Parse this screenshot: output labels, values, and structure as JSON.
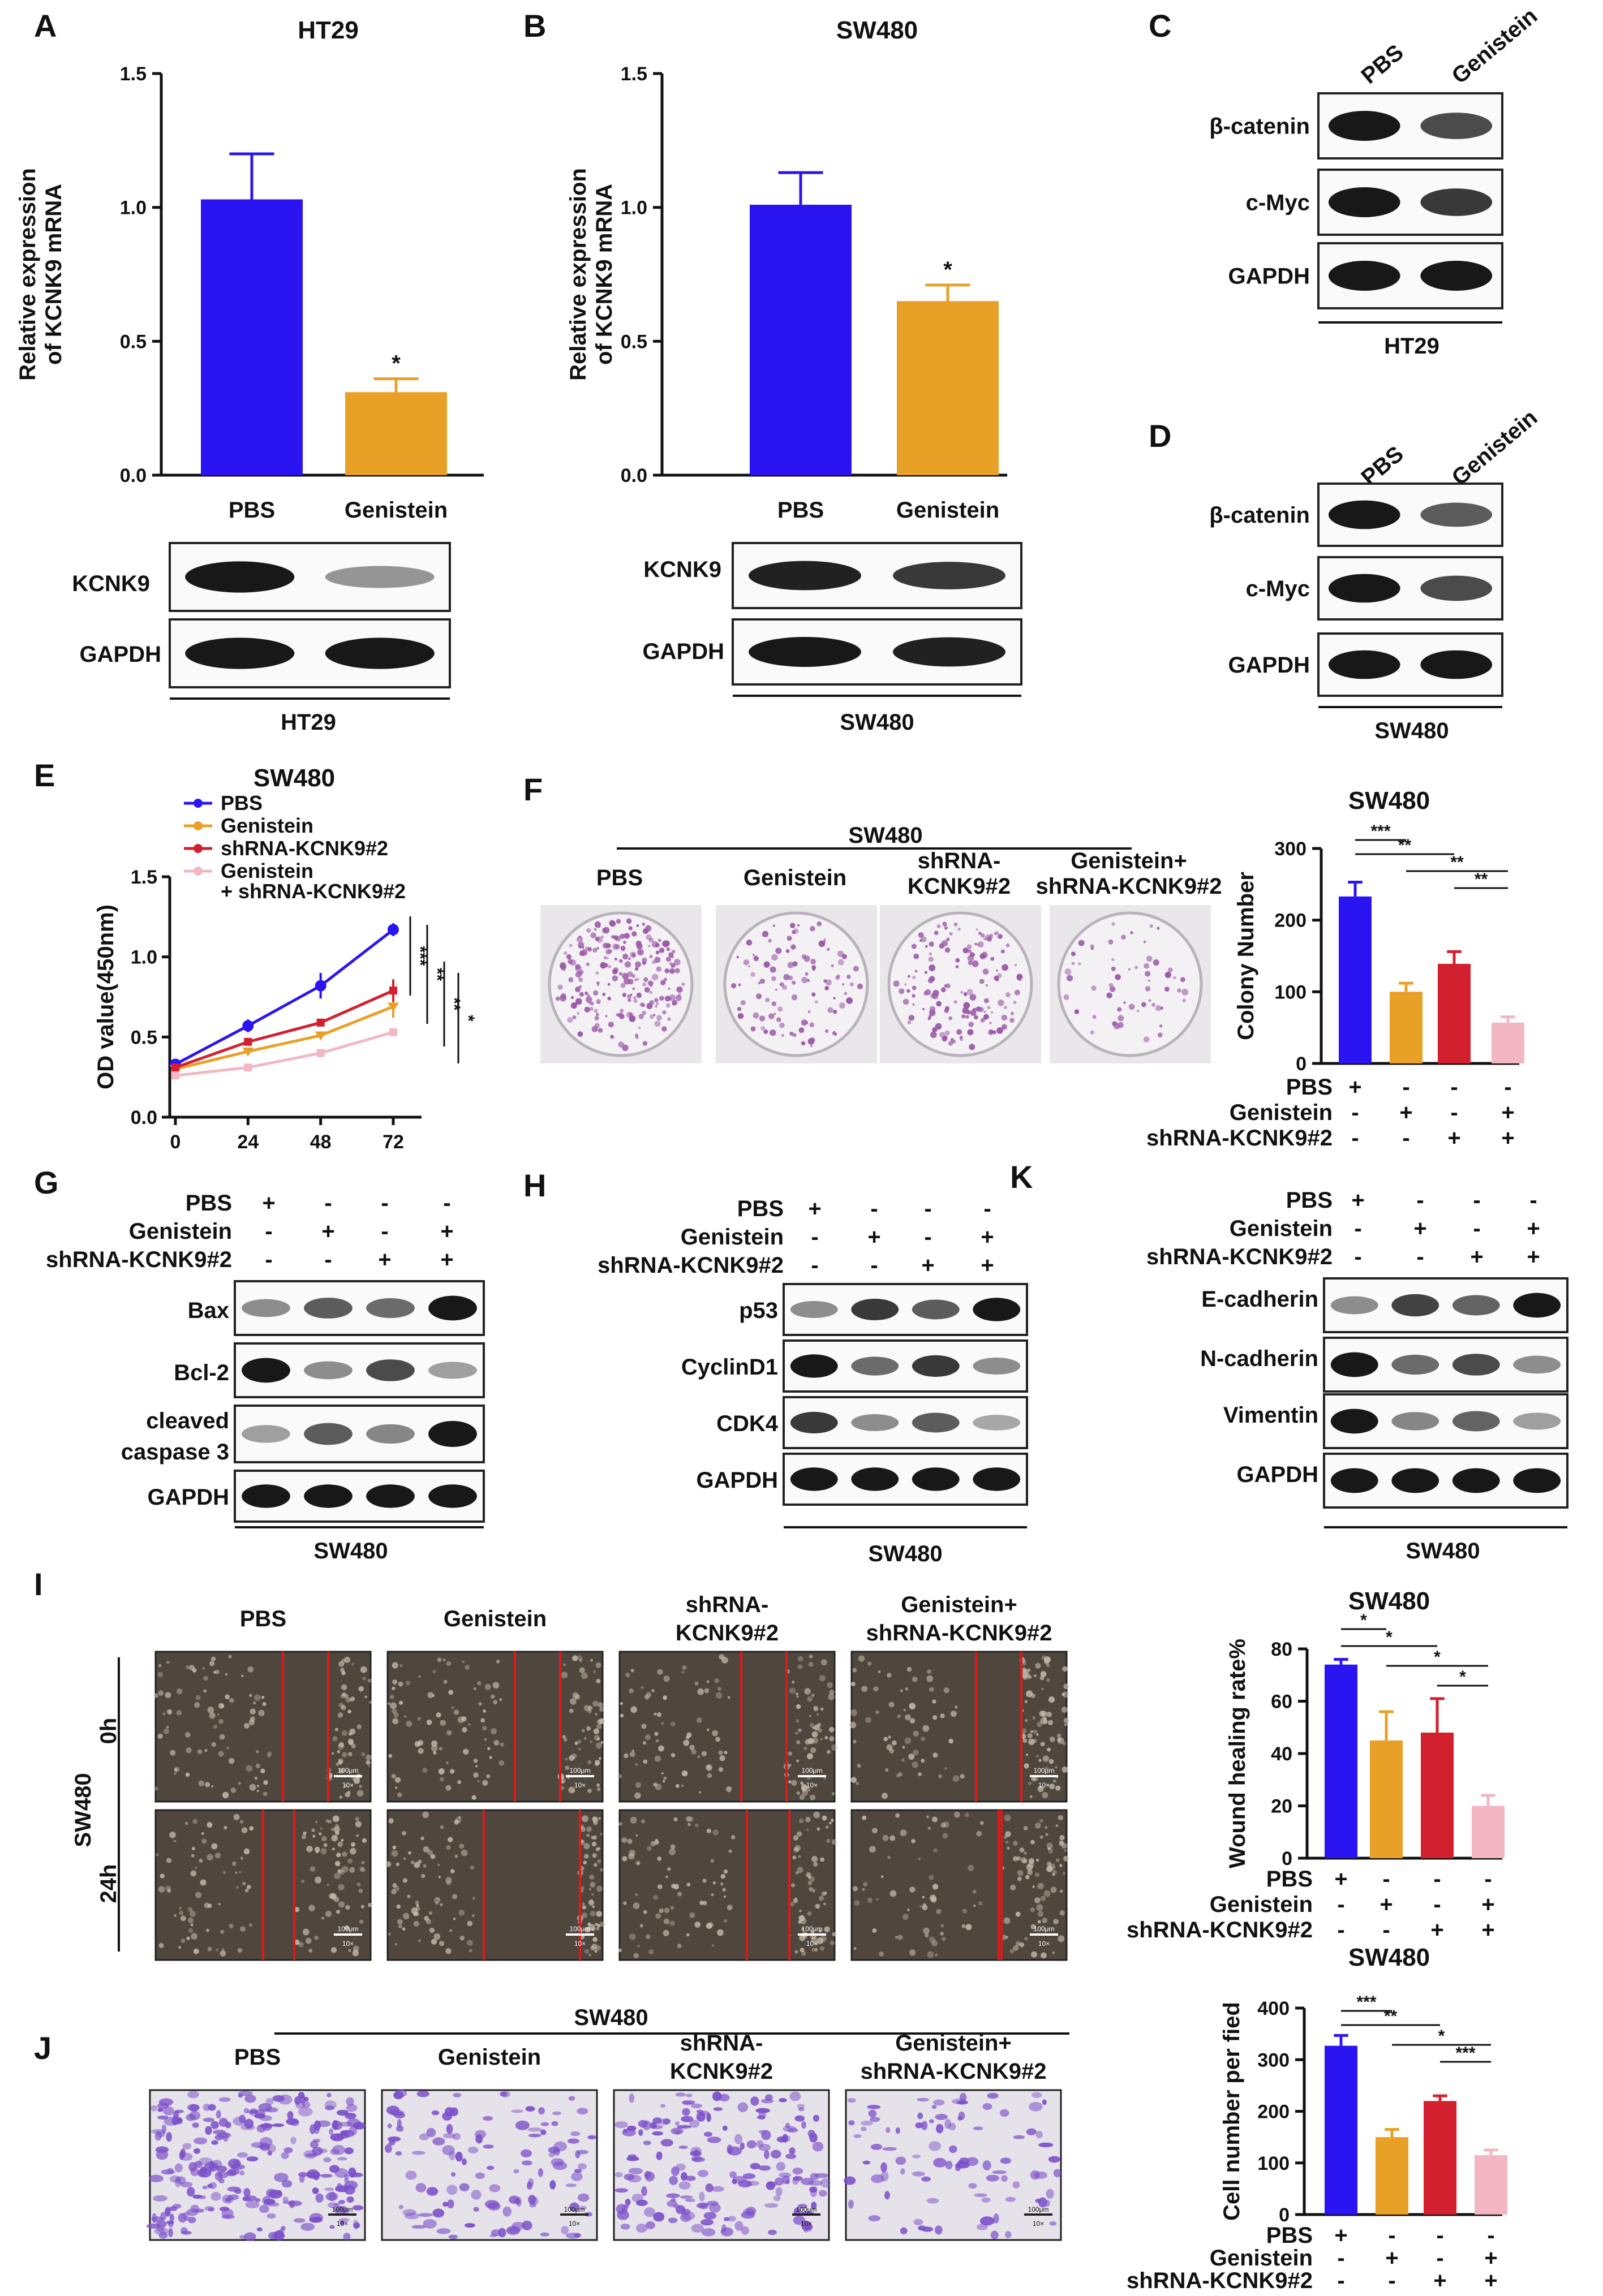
{
  "panels": {
    "A": {
      "label": "A",
      "title": "HT29"
    },
    "B": {
      "label": "B",
      "title": "SW480"
    },
    "C": {
      "label": "C",
      "cell": "HT29"
    },
    "D": {
      "label": "D",
      "cell": "SW480"
    },
    "E": {
      "label": "E",
      "title": "SW480"
    },
    "F": {
      "label": "F",
      "header": "SW480",
      "title": "SW480"
    },
    "G": {
      "label": "G",
      "cell": "SW480"
    },
    "H": {
      "label": "H",
      "cell": "SW480"
    },
    "K": {
      "label": "K",
      "cell": "SW480"
    },
    "I": {
      "label": "I",
      "title": "SW480",
      "side": "SW480",
      "row0": "0h",
      "row24": "24h",
      "scale": "100μm",
      "mag": "10×"
    },
    "J": {
      "label": "J",
      "header": "SW480",
      "title": "SW480",
      "scale": "100μm",
      "mag": "10×"
    }
  },
  "blots": {
    "A": {
      "rows": [
        "KCNK9",
        "GAPDH"
      ],
      "cell": "HT29"
    },
    "B": {
      "rows": [
        "KCNK9",
        "GAPDH"
      ],
      "cell": "SW480"
    },
    "C": {
      "cols": [
        "PBS",
        "Genistein"
      ],
      "rows": [
        "β-catenin",
        "c-Myc",
        "GAPDH"
      ]
    },
    "D": {
      "cols": [
        "PBS",
        "Genistein"
      ],
      "rows": [
        "β-catenin",
        "c-Myc",
        "GAPDH"
      ]
    },
    "G": {
      "rows": [
        "Bax",
        "Bcl-2",
        "cleaved",
        "caspase 3",
        "GAPDH"
      ]
    },
    "H": {
      "rows": [
        "p53",
        "CyclinD1",
        "CDK4",
        "GAPDH"
      ]
    },
    "K": {
      "rows": [
        "E-cadherin",
        "N-cadherin",
        "Vimentin",
        "GAPDH"
      ]
    }
  },
  "treatment": {
    "rows": [
      "PBS",
      "Genistein",
      "shRNA-KCNK9#2"
    ],
    "signs": [
      [
        "+",
        "-",
        "-",
        "-"
      ],
      [
        "-",
        "+",
        "-",
        "+"
      ],
      [
        "-",
        "-",
        "+",
        "+"
      ]
    ]
  },
  "groups": {
    "pbs": "PBS",
    "gen": "Genistein",
    "sh1": "shRNA-",
    "sh2": "KCNK9#2",
    "gs1": "Genistein+",
    "gs2": "shRNA-KCNK9#2"
  },
  "colors": {
    "pbs": "#2b14f2",
    "gen": "#e8a026",
    "sh": "#d2202f",
    "gensh": "#f2b7c3",
    "plate": "#9b5aa8",
    "wound": "#e01818"
  },
  "chart_data": [
    {
      "id": "A",
      "type": "bar",
      "title": "HT29",
      "ylabel": "Relative expression of KCNK9 mRNA",
      "ylabel_lines": [
        "Relative expression",
        "of KCNK9 mRNA"
      ],
      "categories": [
        "PBS",
        "Genistein"
      ],
      "values": [
        1.03,
        0.31
      ],
      "errors": [
        0.17,
        0.05
      ],
      "ylim": [
        0,
        1.5
      ],
      "yticks": [
        "0.0",
        "0.5",
        "1.0",
        "1.5"
      ],
      "significance": [
        "",
        "*"
      ]
    },
    {
      "id": "B",
      "type": "bar",
      "title": "SW480",
      "ylabel": "Relative expression of KCNK9 mRNA",
      "ylabel_lines": [
        "Relative expression",
        "of KCNK9 mRNA"
      ],
      "categories": [
        "PBS",
        "Genistein"
      ],
      "values": [
        1.01,
        0.65
      ],
      "errors": [
        0.12,
        0.06
      ],
      "ylim": [
        0,
        1.5
      ],
      "yticks": [
        "0.0",
        "0.5",
        "1.0",
        "1.5"
      ],
      "significance": [
        "",
        "*"
      ]
    },
    {
      "id": "E",
      "type": "line",
      "title": "SW480",
      "xlabel": "",
      "ylabel": "OD value(450nm)",
      "x": [
        0,
        24,
        48,
        72
      ],
      "xticks": [
        "0",
        "24",
        "48",
        "72"
      ],
      "ylim": [
        0,
        1.5
      ],
      "yticks": [
        "0.0",
        "0.5",
        "1.0",
        "1.5"
      ],
      "series": [
        {
          "name": "PBS",
          "values": [
            0.33,
            0.57,
            0.82,
            1.17
          ],
          "errors": [
            0.02,
            0.04,
            0.08,
            0.04
          ]
        },
        {
          "name": "Genistein",
          "values": [
            0.3,
            0.41,
            0.51,
            0.69
          ],
          "errors": [
            0.01,
            0.02,
            0.02,
            0.07
          ]
        },
        {
          "name": "shRNA-KCNK9#2",
          "values": [
            0.31,
            0.47,
            0.59,
            0.79
          ],
          "errors": [
            0.01,
            0.02,
            0.02,
            0.07
          ]
        },
        {
          "name": "Genistein + shRNA-KCNK9#2",
          "name_lines": [
            "Genistein",
            "+ shRNA-KCNK9#2"
          ],
          "values": [
            0.26,
            0.31,
            0.4,
            0.53
          ],
          "errors": [
            0.01,
            0.01,
            0.02,
            0.02
          ]
        }
      ],
      "significance": [
        "***",
        "**",
        "**",
        "*"
      ]
    },
    {
      "id": "F",
      "type": "bar",
      "title": "SW480",
      "ylabel": "Colony Number",
      "groups": [
        "PBS",
        "Genistein",
        "shRNA-KCNK9#2",
        "Genistein+shRNA-KCNK9#2"
      ],
      "values": [
        233,
        100,
        139,
        57
      ],
      "errors": [
        20,
        12,
        17,
        8
      ],
      "ylim": [
        0,
        300
      ],
      "yticks": [
        "0",
        "100",
        "200",
        "300"
      ],
      "significance": [
        "***",
        "**",
        "**",
        "**"
      ]
    },
    {
      "id": "I",
      "type": "bar",
      "title": "SW480",
      "ylabel": "Wound healing rate%",
      "groups": [
        "PBS",
        "Genistein",
        "shRNA-KCNK9#2",
        "Genistein+shRNA-KCNK9#2"
      ],
      "values": [
        74,
        45,
        48,
        20
      ],
      "errors": [
        2,
        11,
        13,
        4
      ],
      "ylim": [
        0,
        80
      ],
      "yticks": [
        "0",
        "20",
        "40",
        "60",
        "80"
      ],
      "significance": [
        "*",
        "*",
        "*",
        "*"
      ]
    },
    {
      "id": "J",
      "type": "bar",
      "title": "SW480",
      "ylabel": "Cell number per fied",
      "groups": [
        "PBS",
        "Genistein",
        "shRNA-KCNK9#2",
        "Genistein+shRNA-KCNK9#2"
      ],
      "values": [
        327,
        150,
        220,
        115
      ],
      "errors": [
        20,
        15,
        10,
        10
      ],
      "ylim": [
        0,
        400
      ],
      "yticks": [
        "0",
        "100",
        "200",
        "300",
        "400"
      ],
      "significance": [
        "***",
        "**",
        "*",
        "***"
      ]
    }
  ]
}
